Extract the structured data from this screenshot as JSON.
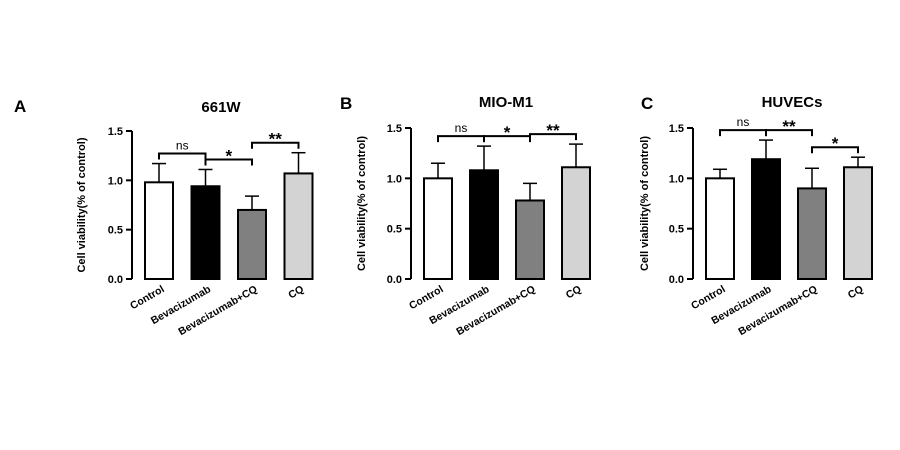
{
  "chart_data": [
    {
      "type": "bar",
      "panel": "A",
      "title": "661W",
      "ylabel": "Cell viability(% of control)",
      "categories": [
        "Control",
        "Bevacizumab",
        "Bevacizumab+CQ",
        "CQ"
      ],
      "values": [
        0.98,
        0.94,
        0.7,
        1.07
      ],
      "errors": [
        0.19,
        0.17,
        0.14,
        0.21
      ],
      "bar_colors": [
        "#ffffff",
        "#000000",
        "#808080",
        "#d3d3d3"
      ],
      "ylim": [
        0,
        1.5
      ],
      "yticks": [
        "0.0",
        "0.5",
        "1.0",
        "1.5"
      ],
      "significance": [
        {
          "from": 0,
          "to": 1,
          "label": "ns"
        },
        {
          "from": 1,
          "to": 2,
          "label": "*"
        },
        {
          "from": 2,
          "to": 3,
          "label": "**"
        }
      ]
    },
    {
      "type": "bar",
      "panel": "B",
      "title": "MIO-M1",
      "ylabel": "Cell viability(% of control)",
      "categories": [
        "Control",
        "Bevacizumab",
        "Bevacizumab+CQ",
        "CQ"
      ],
      "values": [
        1.0,
        1.08,
        0.78,
        1.11
      ],
      "errors": [
        0.15,
        0.24,
        0.17,
        0.23
      ],
      "bar_colors": [
        "#ffffff",
        "#000000",
        "#808080",
        "#d3d3d3"
      ],
      "ylim": [
        0,
        1.5
      ],
      "yticks": [
        "0.0",
        "0.5",
        "1.0",
        "1.5"
      ],
      "significance": [
        {
          "from": 0,
          "to": 1,
          "label": "ns"
        },
        {
          "from": 1,
          "to": 2,
          "label": "*"
        },
        {
          "from": 2,
          "to": 3,
          "label": "**"
        }
      ]
    },
    {
      "type": "bar",
      "panel": "C",
      "title": "HUVECs",
      "ylabel": "Cell viability(% of control)",
      "categories": [
        "Control",
        "Bevacizumab",
        "Bevacizumab+CQ",
        "CQ"
      ],
      "values": [
        1.0,
        1.19,
        0.9,
        1.11
      ],
      "errors": [
        0.09,
        0.19,
        0.2,
        0.1
      ],
      "bar_colors": [
        "#ffffff",
        "#000000",
        "#808080",
        "#d3d3d3"
      ],
      "ylim": [
        0,
        1.5
      ],
      "yticks": [
        "0.0",
        "0.5",
        "1.0",
        "1.5"
      ],
      "significance": [
        {
          "from": 0,
          "to": 1,
          "label": "ns"
        },
        {
          "from": 1,
          "to": 2,
          "label": "**"
        },
        {
          "from": 2,
          "to": 3,
          "label": "*"
        }
      ]
    }
  ]
}
